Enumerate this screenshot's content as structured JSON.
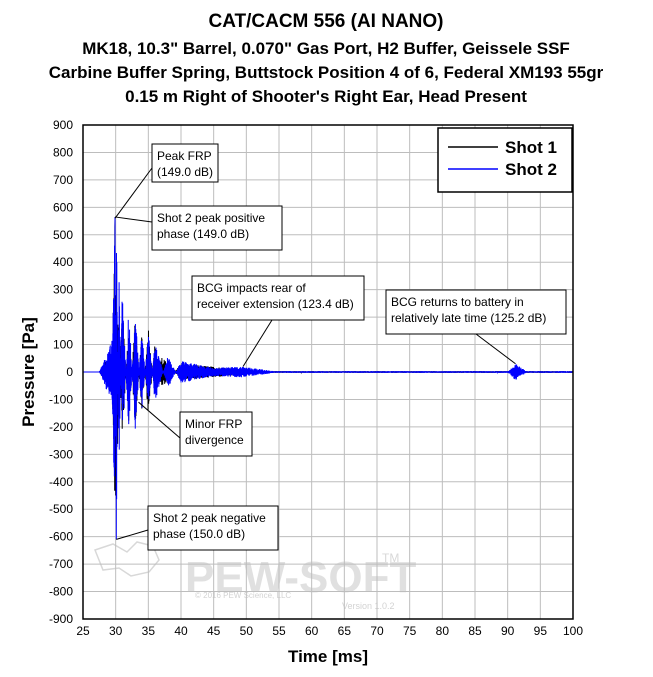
{
  "chart_data": {
    "type": "line",
    "title_lines": [
      "CAT/CACM 556 (AI NANO)",
      "MK18, 10.3\" Barrel, 0.070\" Gas Port, H2 Buffer, Geissele SSF",
      "Carbine Buffer Spring, Buttstock Position 4 of 6, Federal XM193 55gr",
      "0.15 m Right of Shooter's Right Ear, Head Present"
    ],
    "xlabel": "Time [ms]",
    "ylabel": "Pressure [Pa]",
    "xlim": [
      25,
      100
    ],
    "ylim": [
      -900,
      900
    ],
    "x_ticks": [
      "25",
      "30",
      "35",
      "40",
      "45",
      "50",
      "55",
      "60",
      "65",
      "70",
      "75",
      "80",
      "85",
      "90",
      "95",
      "100"
    ],
    "y_ticks": [
      "900",
      "800",
      "700",
      "600",
      "500",
      "400",
      "300",
      "200",
      "100",
      "0",
      "-100",
      "-200",
      "-300",
      "-400",
      "-500",
      "-600",
      "-700",
      "-800",
      "-900"
    ],
    "grid": true,
    "legend_position": "top-right",
    "series": [
      {
        "name": "Shot 1",
        "color": "#000000",
        "description_points": [
          [
            27.5,
            0
          ],
          [
            29.5,
            80
          ],
          [
            29.9,
            560
          ],
          [
            30.0,
            -450
          ],
          [
            30.3,
            300
          ],
          [
            31,
            -260
          ],
          [
            32,
            180
          ],
          [
            33,
            -200
          ],
          [
            34,
            150
          ],
          [
            35,
            -160
          ],
          [
            36,
            100
          ],
          [
            37,
            -60
          ],
          [
            40,
            30
          ],
          [
            49.5,
            10
          ],
          [
            55,
            0
          ],
          [
            100,
            0
          ]
        ]
      },
      {
        "name": "Shot 2",
        "color": "#0000ff",
        "description_points": [
          [
            27.5,
            0
          ],
          [
            29.5,
            120
          ],
          [
            29.9,
            565
          ],
          [
            30.1,
            -610
          ],
          [
            30.5,
            380
          ],
          [
            31,
            -300
          ],
          [
            32,
            230
          ],
          [
            33,
            -220
          ],
          [
            34,
            160
          ],
          [
            35,
            -150
          ],
          [
            36,
            110
          ],
          [
            38,
            -60
          ],
          [
            40,
            40
          ],
          [
            45,
            15
          ],
          [
            49.5,
            20
          ],
          [
            55,
            0
          ],
          [
            90,
            0
          ],
          [
            91.2,
            30
          ],
          [
            93,
            0
          ],
          [
            100,
            0
          ]
        ]
      }
    ],
    "annotations": [
      {
        "id": "peak-frp",
        "lines": [
          "Peak FRP",
          "(149.0 dB)"
        ],
        "x": 29.9,
        "y": 560
      },
      {
        "id": "shot2-positive",
        "lines": [
          "Shot 2 peak positive",
          "phase (149.0 dB)"
        ],
        "x": 29.9,
        "y": 565
      },
      {
        "id": "bcg-impact",
        "lines": [
          "BCG impacts rear of",
          "receiver extension (123.4 dB)"
        ],
        "x": 49.5,
        "y": 20
      },
      {
        "id": "bcg-return",
        "lines": [
          "BCG returns to battery in",
          "relatively late time (125.2 dB)"
        ],
        "x": 91.2,
        "y": 30
      },
      {
        "id": "minor-frp",
        "lines": [
          "Minor FRP",
          "divergence"
        ],
        "x": 33.5,
        "y": -110
      },
      {
        "id": "shot2-negative",
        "lines": [
          "Shot 2 peak negative",
          "phase (150.0 dB)"
        ],
        "x": 30.1,
        "y": -610
      }
    ]
  },
  "watermark": {
    "brand": "PEW-SOFT",
    "trademark": "TM",
    "copyright": "© 2016 PEW Science, LLC",
    "version": "Version 1.0.2"
  }
}
